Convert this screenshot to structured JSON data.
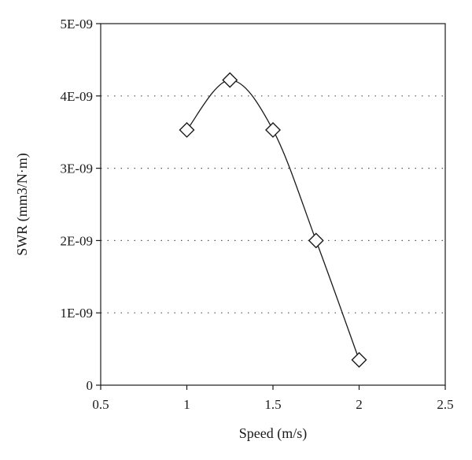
{
  "chart_data": {
    "type": "scatter",
    "title": "",
    "xlabel": "Speed (m/s)",
    "ylabel": "SWR (mm3/N·m)",
    "xlim": [
      0.5,
      2.5
    ],
    "ylim": [
      0,
      5e-09
    ],
    "x_ticks": [
      0.5,
      1,
      1.5,
      2,
      2.5
    ],
    "x_tick_labels": [
      "0.5",
      "1",
      "1.5",
      "2",
      "2.5"
    ],
    "y_ticks": [
      0,
      1e-09,
      2e-09,
      3e-09,
      4e-09,
      5e-09
    ],
    "y_tick_labels": [
      "0",
      "1E-09",
      "2E-09",
      "3E-09",
      "4E-09",
      "5E-09"
    ],
    "grid": "horizontal dotted",
    "marker": "diamond",
    "line": "smoothed",
    "series": [
      {
        "x": [
          1,
          1.25,
          1.5,
          1.75,
          2
        ],
        "y": [
          3.53e-09,
          4.22e-09,
          3.53e-09,
          2e-09,
          3.5e-10
        ]
      }
    ]
  }
}
